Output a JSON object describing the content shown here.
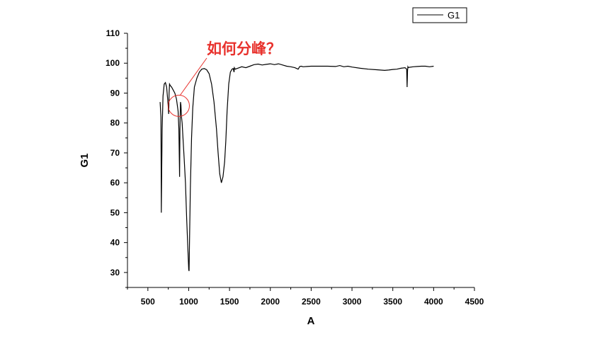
{
  "chart_data": {
    "type": "line",
    "xlabel": "A",
    "ylabel": "G1",
    "xlim": [
      250,
      4500
    ],
    "ylim": [
      25,
      110
    ],
    "x_ticks": [
      500,
      1000,
      1500,
      2000,
      2500,
      3000,
      3500,
      4000,
      4500
    ],
    "y_ticks": [
      30,
      40,
      50,
      60,
      70,
      80,
      90,
      100,
      110
    ],
    "grid": false,
    "legend_position": "top-right",
    "series": [
      {
        "name": "G1",
        "color": "#000000",
        "x": [
          650,
          660,
          665,
          670,
          675,
          685,
          700,
          715,
          730,
          745,
          755,
          760,
          765,
          775,
          790,
          810,
          830,
          850,
          870,
          880,
          888,
          893,
          900,
          905,
          912,
          920,
          930,
          945,
          960,
          975,
          990,
          1000,
          1005,
          1010,
          1020,
          1035,
          1050,
          1070,
          1100,
          1130,
          1160,
          1190,
          1220,
          1250,
          1280,
          1310,
          1340,
          1360,
          1380,
          1400,
          1420,
          1440,
          1455,
          1470,
          1490,
          1510,
          1530,
          1545,
          1555,
          1560,
          1570,
          1600,
          1650,
          1700,
          1750,
          1800,
          1850,
          1900,
          1950,
          2000,
          2050,
          2100,
          2150,
          2200,
          2250,
          2300,
          2340,
          2360,
          2380,
          2400,
          2450,
          2500,
          2600,
          2700,
          2800,
          2850,
          2900,
          2950,
          3000,
          3100,
          3200,
          3300,
          3400,
          3450,
          3500,
          3550,
          3600,
          3650,
          3670,
          3675,
          3680,
          3685,
          3690,
          3700,
          3750,
          3800,
          3850,
          3900,
          3950,
          4000
        ],
        "values": [
          87,
          82,
          50,
          65,
          78,
          89,
          93,
          93.5,
          92,
          87,
          83,
          90,
          93,
          92.5,
          92,
          91,
          90,
          88,
          84,
          78,
          62,
          78,
          87,
          86,
          82,
          80,
          75,
          68,
          60,
          48,
          38,
          31,
          30.5,
          40,
          58,
          75,
          85,
          92,
          95,
          97,
          98,
          98.2,
          97.8,
          96.5,
          93,
          87,
          78,
          70,
          63,
          60,
          62,
          67,
          74,
          84,
          93,
          97,
          98,
          98.2,
          97,
          98.5,
          98,
          98.3,
          98.8,
          98.5,
          99,
          99.5,
          99.7,
          99.4,
          99.6,
          99.8,
          99.5,
          99.8,
          99.4,
          99,
          98.8,
          98.5,
          98,
          98.9,
          99,
          98.8,
          98.9,
          99,
          99,
          99,
          98.9,
          99.2,
          98.8,
          99,
          98.7,
          98.3,
          98,
          97.8,
          97.6,
          97.7,
          97.9,
          98,
          98.3,
          98.5,
          98,
          92,
          97.5,
          98.8,
          98.5,
          98.6,
          98.8,
          98.9,
          99,
          99,
          98.8,
          99
        ]
      }
    ],
    "annotation": {
      "text": "如何分峰？",
      "color": "#e8322d",
      "target_x": 870,
      "target_y": 86
    }
  }
}
